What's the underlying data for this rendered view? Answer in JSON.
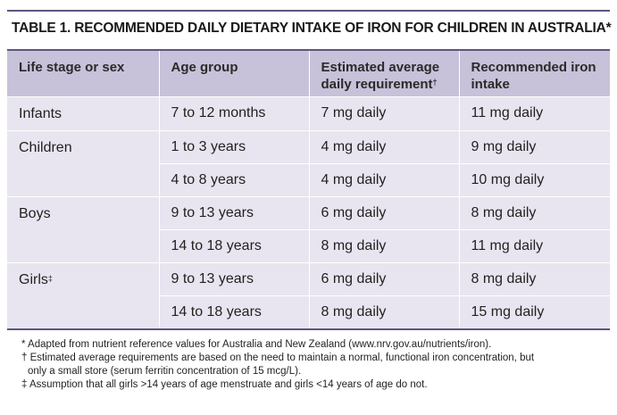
{
  "title": {
    "label": "TABLE 1.",
    "text": "RECOMMENDED DAILY DIETARY INTAKE OF IRON FOR CHILDREN IN AUSTRALIA*"
  },
  "headers": {
    "life_stage": "Life stage or sex",
    "age_group": "Age group",
    "ear": "Estimated average daily requirement",
    "ear_mark": "†",
    "rni": "Recommended iron intake"
  },
  "rows": [
    {
      "sex": "Infants",
      "age": "7 to 12 months",
      "ear": "7 mg daily",
      "rni": "11 mg daily"
    },
    {
      "sex": "Children",
      "age": "1 to 3 years",
      "ear": "4 mg daily",
      "rni": "9 mg daily"
    },
    {
      "sex": "",
      "age": "4 to 8 years",
      "ear": "4 mg daily",
      "rni": "10 mg daily"
    },
    {
      "sex": "Boys",
      "age": "9 to 13 years",
      "ear": "6 mg daily",
      "rni": "8 mg daily"
    },
    {
      "sex": "",
      "age": "14 to 18 years",
      "ear": "8 mg daily",
      "rni": "11 mg daily"
    },
    {
      "sex": "Girls",
      "sex_mark": "‡",
      "age": "9 to 13 years",
      "ear": "6 mg daily",
      "rni": "8 mg daily"
    },
    {
      "sex": "",
      "age": "14 to 18 years",
      "ear": "8 mg daily",
      "rni": "15 mg daily"
    }
  ],
  "footnotes": {
    "note1": "* Adapted from nutrient reference values for Australia and New Zealand (www.nrv.gov.au/nutrients/iron).",
    "note2a": "† Estimated average requirements are based on the need to maintain a normal, functional iron concentration, but",
    "note2b": "only a small store (serum ferritin concentration of 15 mcg/L).",
    "note3": "‡ Assumption that all girls >14 years of age menstruate and girls <14 years of age do not."
  },
  "colors": {
    "accent": "#5e5580",
    "header_bg": "#c7c2d9",
    "body_bg": "#e8e5f0"
  }
}
